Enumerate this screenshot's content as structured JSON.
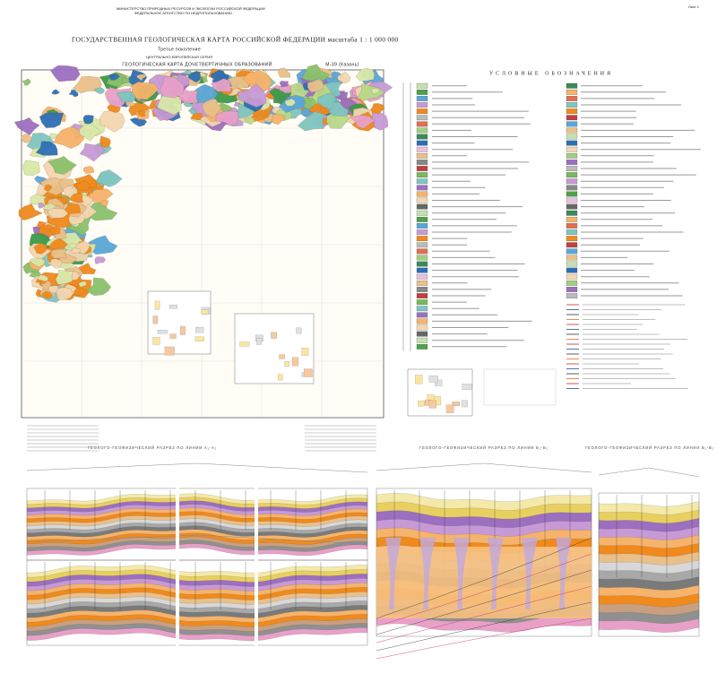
{
  "header": {
    "ministry": "МИНИСТЕРСТВО ПРИРОДНЫХ РЕСУРСОВ И ЭКОЛОГИИ РОССИЙСКОЙ ФЕДЕРАЦИИ",
    "agency": "ФЕДЕРАЛЬНОЕ АГЕНТСТВО ПО НЕДРОПОЛЬЗОВАНИЮ",
    "title": "ГОСУДАРСТВЕННАЯ ГЕОЛОГИЧЕСКАЯ КАРТА РОССИЙСКОЙ ФЕДЕРАЦИИ масштаба 1 : 1 000 000",
    "generation": "Третье поколение",
    "series": "ЦЕНТРАЛЬНО-ЕВРОПЕЙСКАЯ СЕРИЯ",
    "map_title": "ГЕОЛОГИЧЕСКАЯ КАРТА ДОЧЕТВЕРТИЧНЫХ ОБРАЗОВАНИЙ",
    "sheet": "M-39 (Казань)",
    "page": "Лист 1"
  },
  "legend": {
    "title": "УСЛОВНЫЕ ОБОЗНАЧЕНИЯ"
  },
  "sections": [
    {
      "title": "ГЕОЛОГО-ГЕОФИЗИЧЕСКИЙ РАЗРЕЗ ПО ЛИНИИ А₁-А₂"
    },
    {
      "title": "ГЕОЛОГО-ГЕОФИЗИЧЕСКИЙ РАЗРЕЗ ПО ЛИНИИ Б₁-Б₂"
    },
    {
      "title": "ГЕОЛОГО-ГЕОФИЗИЧЕСКИЙ РАЗРЕЗ ПО ЛИНИИ В₁-В₂"
    }
  ]
}
